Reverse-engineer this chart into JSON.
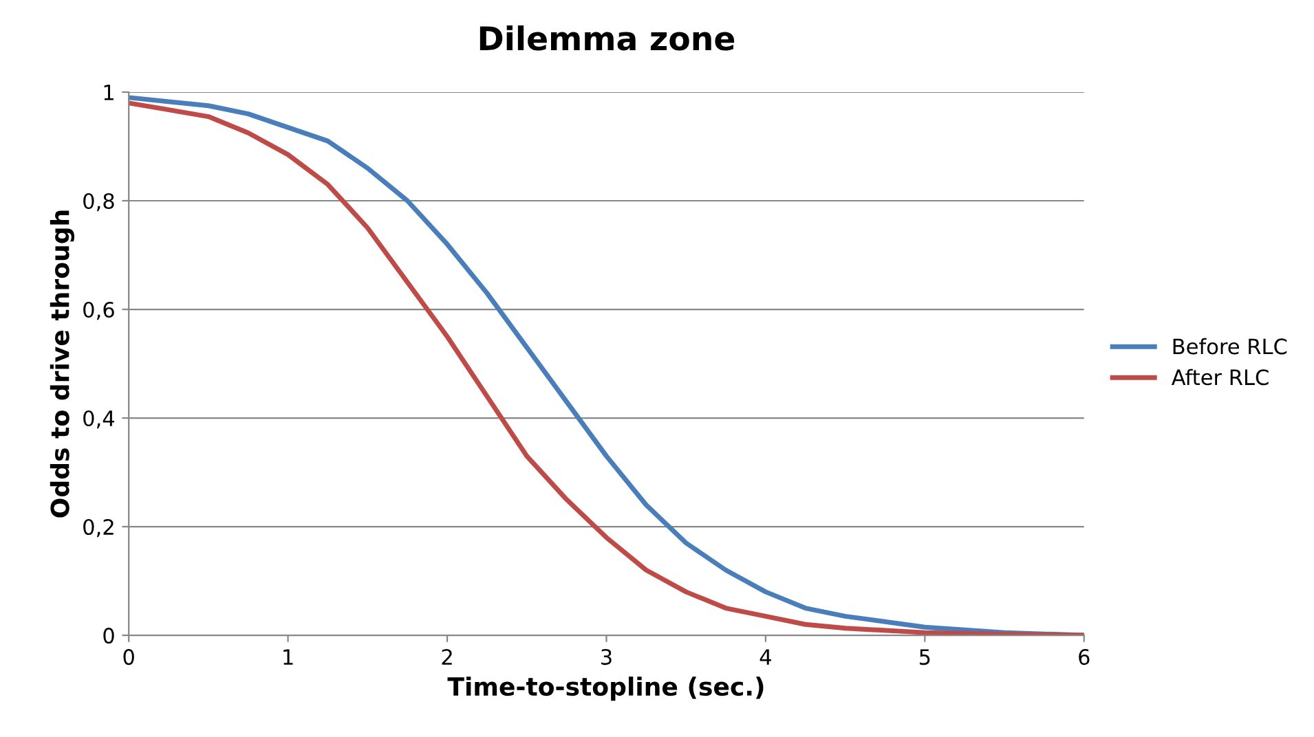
{
  "chart_data": {
    "type": "line",
    "title": "Dilemma zone",
    "xlabel": "Time-to-stopline (sec.)",
    "ylabel": "Odds to drive through",
    "x": [
      0,
      0.5,
      0.75,
      1,
      1.25,
      1.5,
      1.75,
      2,
      2.25,
      2.5,
      2.75,
      3,
      3.25,
      3.5,
      3.75,
      4,
      4.25,
      4.5,
      5,
      5.5,
      6
    ],
    "series": [
      {
        "name": "Before RLC",
        "color": "#4a7ebb",
        "values": [
          0.99,
          0.975,
          0.96,
          0.935,
          0.91,
          0.86,
          0.8,
          0.72,
          0.63,
          0.53,
          0.43,
          0.33,
          0.24,
          0.17,
          0.12,
          0.08,
          0.05,
          0.035,
          0.015,
          0.005,
          0
        ]
      },
      {
        "name": "After RLC",
        "color": "#be4b48",
        "values": [
          0.98,
          0.955,
          0.925,
          0.885,
          0.83,
          0.75,
          0.65,
          0.55,
          0.44,
          0.33,
          0.25,
          0.18,
          0.12,
          0.08,
          0.05,
          0.035,
          0.02,
          0.013,
          0.005,
          0.002,
          0
        ]
      }
    ],
    "xlim": [
      0,
      6
    ],
    "xticks": [
      0,
      1,
      2,
      3,
      4,
      5,
      6
    ],
    "ylim": [
      0,
      1
    ],
    "yticks": [
      0,
      {
        "value": 0.2,
        "label": "0,2"
      },
      {
        "value": 0.4,
        "label": "0,4"
      },
      {
        "value": 0.6,
        "label": "0,6"
      },
      {
        "value": 0.8,
        "label": "0,8"
      },
      1
    ],
    "grid": "y",
    "legend": "right",
    "marker": "none",
    "line_style": "solid"
  }
}
